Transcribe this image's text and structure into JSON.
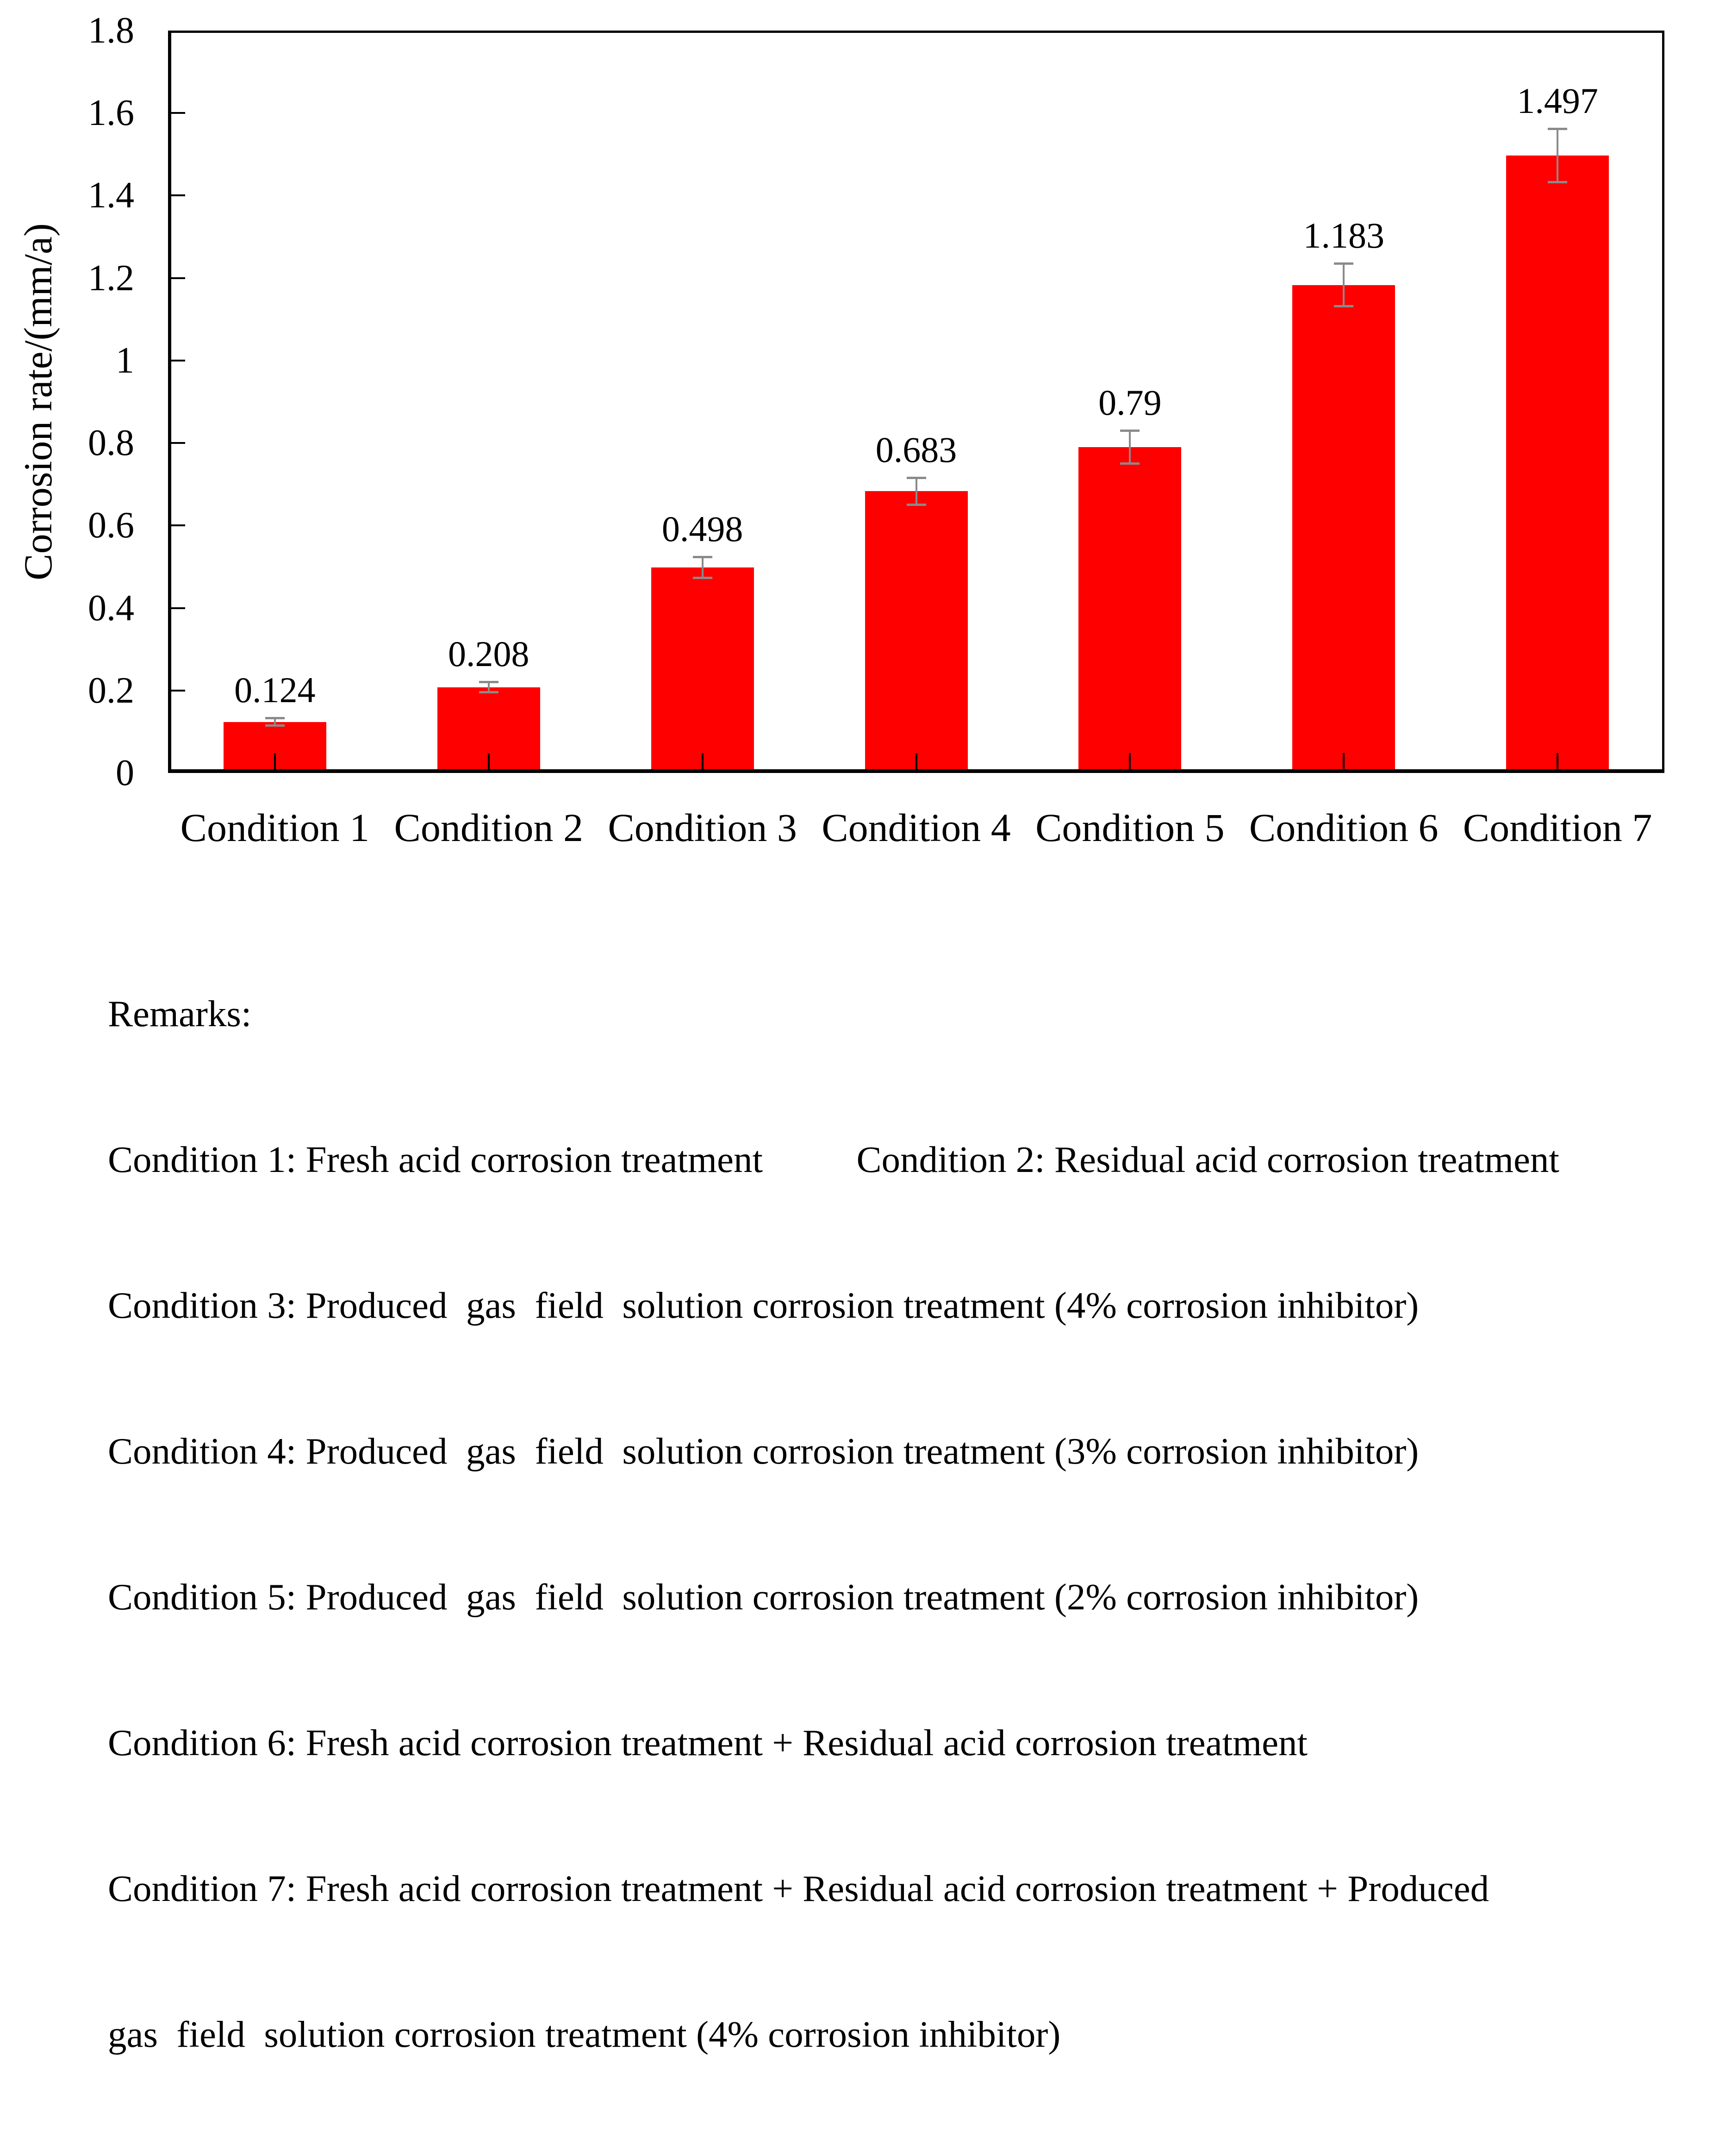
{
  "chart_data": {
    "type": "bar",
    "title": "",
    "categories": [
      "Condition 1",
      "Condition 2",
      "Condition 3",
      "Condition 4",
      "Condition 5",
      "Condition 6",
      "Condition 7"
    ],
    "values": [
      0.124,
      0.208,
      0.498,
      0.683,
      0.79,
      1.183,
      1.497
    ],
    "value_labels": [
      "0.124",
      "0.208",
      "0.498",
      "0.683",
      "0.79",
      "1.183",
      "1.497"
    ],
    "error_bars": [
      0.01,
      0.013,
      0.026,
      0.033,
      0.04,
      0.052,
      0.065
    ],
    "xlabel": "",
    "ylabel": "Corrosion rate/(mm/a)",
    "ylim": [
      0,
      1.8
    ],
    "ytick_interval": 0.2,
    "ytick_labels": [
      "0",
      "0.2",
      "0.4",
      "0.6",
      "0.8",
      "1",
      "1.2",
      "1.4",
      "1.6",
      "1.8"
    ],
    "grid": false,
    "legend": "none",
    "bar_color": "#ff0000",
    "error_bar_color": "#8a8a8a",
    "axis_color": "#000000",
    "text_color": "#000000"
  },
  "remarks": {
    "lines": [
      "Remarks:",
      "Condition 1: Fresh acid corrosion treatment          Condition 2: Residual acid corrosion treatment",
      "Condition 3: Produced  gas  field  solution corrosion treatment (4% corrosion inhibitor)",
      "Condition 4: Produced  gas  field  solution corrosion treatment (3% corrosion inhibitor)",
      "Condition 5: Produced  gas  field  solution corrosion treatment (2% corrosion inhibitor)",
      "Condition 6: Fresh acid corrosion treatment + Residual acid corrosion treatment",
      "Condition 7: Fresh acid corrosion treatment + Residual acid corrosion treatment + Produced",
      "gas  field  solution corrosion treatment (4% corrosion inhibitor)"
    ]
  }
}
